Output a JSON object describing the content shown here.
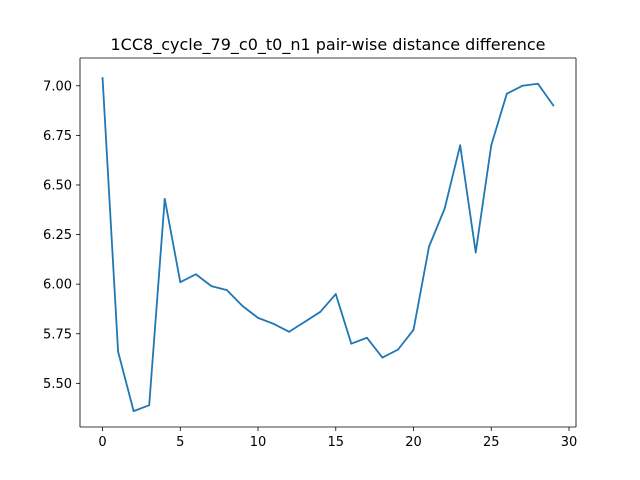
{
  "chart_data": {
    "type": "line",
    "title": "1CC8_cycle_79_c0_t0_n1 pair-wise distance difference",
    "xlabel": "",
    "ylabel": "",
    "xlim": [
      -1.45,
      30.45
    ],
    "ylim": [
      5.28,
      7.14
    ],
    "xticks": [
      0,
      5,
      10,
      15,
      20,
      25,
      30
    ],
    "xtick_labels": [
      "0",
      "5",
      "10",
      "15",
      "20",
      "25",
      "30"
    ],
    "yticks": [
      5.5,
      5.75,
      6.0,
      6.25,
      6.5,
      6.75,
      7.0
    ],
    "ytick_labels": [
      "5.50",
      "5.75",
      "6.00",
      "6.25",
      "6.50",
      "6.75",
      "7.00"
    ],
    "grid": false,
    "series": [
      {
        "color": "#1f77b4",
        "x": [
          0,
          1,
          2,
          3,
          4,
          5,
          6,
          7,
          8,
          9,
          10,
          11,
          12,
          13,
          14,
          15,
          16,
          17,
          18,
          19,
          20,
          21,
          22,
          23,
          24,
          25,
          26,
          27,
          28,
          29
        ],
        "y": [
          7.04,
          5.66,
          5.36,
          5.39,
          6.43,
          6.01,
          6.05,
          5.99,
          5.97,
          5.89,
          5.83,
          5.8,
          5.76,
          5.81,
          5.86,
          5.95,
          5.7,
          5.73,
          5.63,
          5.67,
          5.77,
          6.19,
          6.38,
          6.7,
          6.16,
          6.7,
          6.96,
          7.0,
          7.01,
          6.9
        ]
      }
    ]
  }
}
